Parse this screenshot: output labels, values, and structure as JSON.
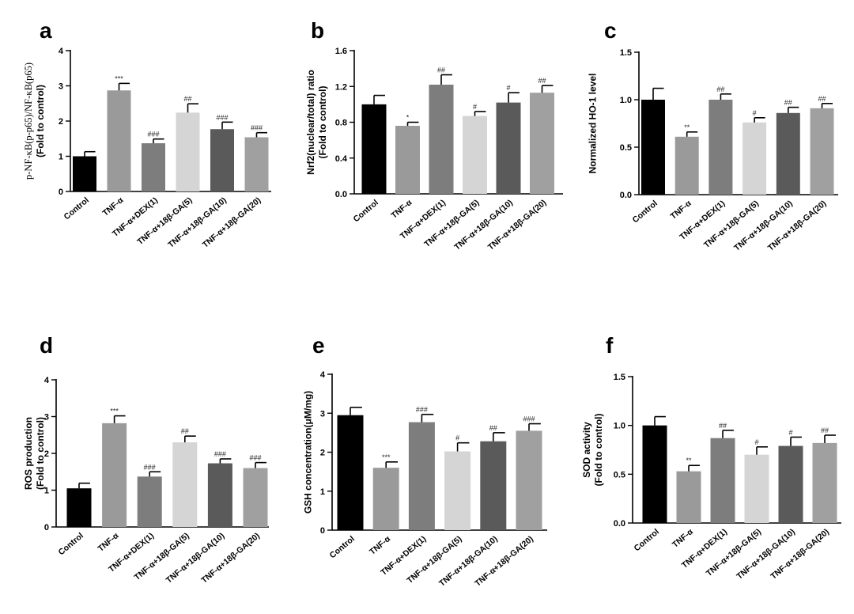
{
  "chart_data": [
    {
      "type": "bar",
      "panel": "a",
      "ylabel_lines": [
        "p-NF-κB(p-p65)/NF-κB(p65)",
        "(Fold to control)"
      ],
      "ylabel_font": "serif-first",
      "ylim": [
        0,
        4
      ],
      "yticks": [
        "0",
        "1",
        "2",
        "3",
        "4"
      ],
      "ytick_values": [
        0,
        1,
        2,
        3,
        4
      ],
      "categories": [
        "Control",
        "TNF-α",
        "TNF-α+DEX(1)",
        "TNF-α+18β-GA(5)",
        "TNF-α+18β-GA(10)",
        "TNF-α+18β-GA(20)"
      ],
      "values": [
        1.0,
        2.87,
        1.37,
        2.24,
        1.77,
        1.54
      ],
      "errors": [
        0.13,
        0.2,
        0.12,
        0.25,
        0.2,
        0.13
      ],
      "significance": [
        "",
        "***",
        "###",
        "##",
        "###",
        "###"
      ]
    },
    {
      "type": "bar",
      "panel": "b",
      "ylabel_lines": [
        "Nrf2(nuclear/total) ratio",
        "(Fold to control)"
      ],
      "ylim": [
        0,
        1.6
      ],
      "yticks": [
        "0.0",
        "0.4",
        "0.8",
        "1.2",
        "1.6"
      ],
      "ytick_values": [
        0,
        0.4,
        0.8,
        1.2,
        1.6
      ],
      "categories": [
        "Control",
        "TNF-α",
        "TNF-α+DEX(1)",
        "TNF-α+18β-GA(5)",
        "TNF-α+18β-GA(10)",
        "TNF-α+18β-GA(20)"
      ],
      "values": [
        1.0,
        0.76,
        1.22,
        0.87,
        1.02,
        1.13
      ],
      "errors": [
        0.1,
        0.04,
        0.11,
        0.05,
        0.11,
        0.08
      ],
      "significance": [
        "",
        "*",
        "##",
        "#",
        "#",
        "##"
      ]
    },
    {
      "type": "bar",
      "panel": "c",
      "ylabel_lines": [
        "Normalized HO-1 level"
      ],
      "ylim": [
        0,
        1.5
      ],
      "yticks": [
        "0.0",
        "0.5",
        "1.0",
        "1.5"
      ],
      "ytick_values": [
        0,
        0.5,
        1.0,
        1.5
      ],
      "categories": [
        "Control",
        "TNF-α",
        "TNF-α+DEX(1)",
        "TNF-α+18β-GA(5)",
        "TNF-α+18β-GA(10)",
        "TNF-α+18β-GA(20)"
      ],
      "values": [
        1.0,
        0.61,
        1.0,
        0.76,
        0.86,
        0.91
      ],
      "errors": [
        0.12,
        0.05,
        0.06,
        0.05,
        0.06,
        0.05
      ],
      "significance": [
        "",
        "**",
        "##",
        "#",
        "##",
        "##"
      ]
    },
    {
      "type": "bar",
      "panel": "d",
      "ylabel_lines": [
        "ROS production",
        "(Fold to control)"
      ],
      "ylim": [
        0,
        4
      ],
      "yticks": [
        "0",
        "1",
        "2",
        "3",
        "4"
      ],
      "ytick_values": [
        0,
        1,
        2,
        3,
        4
      ],
      "categories": [
        "Control",
        "TNF-α",
        "TNF-α+DEX(1)",
        "TNF-α+18β-GA(5)",
        "TNF-α+18β-GA(10)",
        "TNF-α+18β-GA(20)"
      ],
      "values": [
        1.05,
        2.82,
        1.37,
        2.3,
        1.73,
        1.6
      ],
      "errors": [
        0.14,
        0.2,
        0.13,
        0.17,
        0.12,
        0.15
      ],
      "significance": [
        "",
        "***",
        "###",
        "##",
        "###",
        "###"
      ]
    },
    {
      "type": "bar",
      "panel": "e",
      "ylabel_lines": [
        "GSH concentration(μM/mg)"
      ],
      "ylim": [
        0,
        4
      ],
      "yticks": [
        "0",
        "1",
        "2",
        "3",
        "4"
      ],
      "ytick_values": [
        0,
        1,
        2,
        3,
        4
      ],
      "categories": [
        "Control",
        "TNF-α",
        "TNF-α+DEX(1)",
        "TNF-α+18β-GA(5)",
        "TNF-α+18β-GA(10)",
        "TNF-α+18β-GA(20)"
      ],
      "values": [
        2.95,
        1.6,
        2.77,
        2.02,
        2.28,
        2.55
      ],
      "errors": [
        0.2,
        0.15,
        0.2,
        0.22,
        0.22,
        0.18
      ],
      "significance": [
        "",
        "***",
        "###",
        "#",
        "##",
        "###"
      ]
    },
    {
      "type": "bar",
      "panel": "f",
      "ylabel_lines": [
        "SOD activity",
        "(Fold to control)"
      ],
      "ylim": [
        0,
        1.5
      ],
      "yticks": [
        "0.0",
        "0.5",
        "1.0",
        "1.5"
      ],
      "ytick_values": [
        0,
        0.5,
        1.0,
        1.5
      ],
      "categories": [
        "Control",
        "TNF-α",
        "TNF-α+DEX(1)",
        "TNF-α+18β-GA(5)",
        "TNF-α+18β-GA(10)",
        "TNF-α+18β-GA(20)"
      ],
      "values": [
        1.0,
        0.53,
        0.87,
        0.7,
        0.79,
        0.82
      ],
      "errors": [
        0.09,
        0.06,
        0.08,
        0.08,
        0.09,
        0.08
      ],
      "significance": [
        "",
        "**",
        "##",
        "#",
        "#",
        "##"
      ]
    }
  ],
  "bar_colors": [
    "#000000",
    "#9a9a9a",
    "#7d7d7d",
    "#d5d5d5",
    "#5a5a5a",
    "#a0a0a0"
  ]
}
